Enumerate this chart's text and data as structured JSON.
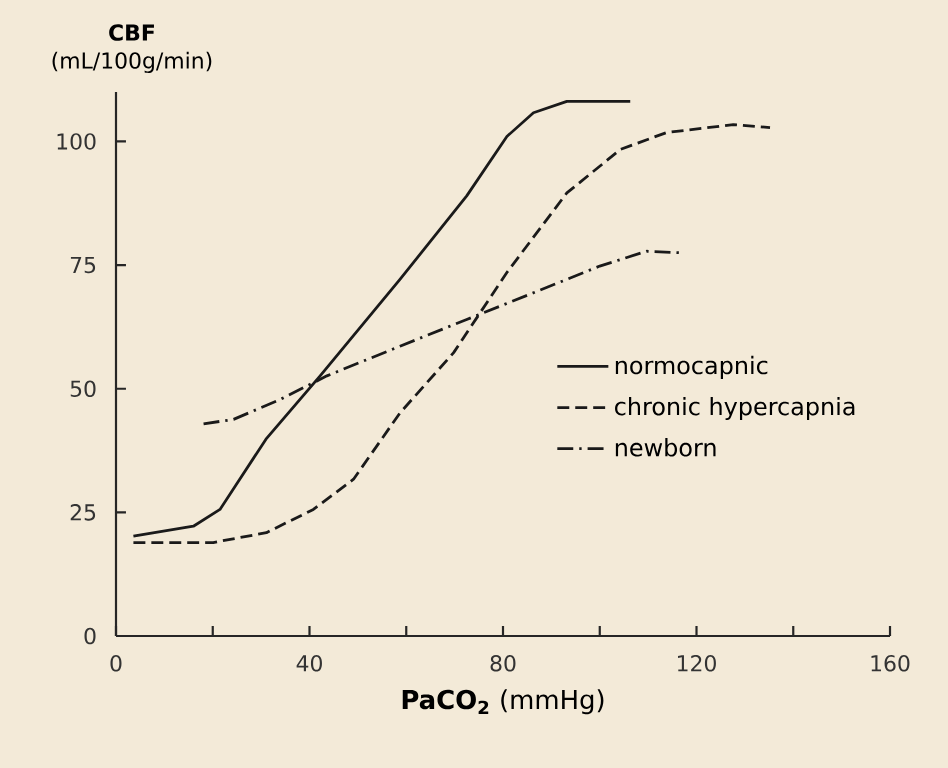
{
  "chart_data": {
    "type": "line",
    "xlabel": "**PaCO$_{2}$** (mmHg)",
    "ylabel": "**CBF** (mL/100g/min)",
    "xlim": [
      0,
      160
    ],
    "ylim": [
      0,
      110
    ],
    "xticks": [
      0,
      {
        "value": 20,
        "label": null
      },
      40,
      {
        "value": 60,
        "label": null
      },
      80,
      {
        "value": 100,
        "label": null
      },
      120,
      {
        "value": 140,
        "label": null
      },
      160
    ],
    "yticks": [
      0,
      25,
      50,
      75,
      100
    ],
    "grid": false,
    "legend": "right",
    "marker": "none",
    "series": [
      {
        "name": "normocapnic",
        "color": "#1a1a1a",
        "line_style": "solid",
        "x": [
          3.6,
          16,
          21.5,
          31,
          42.2,
          58.7,
          72.5,
          80.8,
          86.3,
          93.2,
          106.3
        ],
        "values": [
          20.2,
          22.2,
          25.6,
          39.8,
          52.6,
          72.1,
          89,
          101,
          105.8,
          108.1,
          108.1
        ]
      },
      {
        "name": "chronic hypercapnia",
        "color": "#1a1a1a",
        "line_style": "dashed",
        "x": [
          3.6,
          20.1,
          31.1,
          40.8,
          49.1,
          58.7,
          69.8,
          80.8,
          93.2,
          104.3,
          113.8,
          127.6,
          135.2
        ],
        "values": [
          18.9,
          18.9,
          20.9,
          25.6,
          31.7,
          45.1,
          57.3,
          73.5,
          89.6,
          98.4,
          101.8,
          103.4,
          102.8
        ]
      },
      {
        "name": "newborn",
        "color": "#1a1a1a",
        "line_style": "dashdot",
        "x": [
          18.1,
          24.3,
          33.9,
          43.6,
          58.7,
          72.5,
          86.3,
          100,
          109.7,
          116.6
        ],
        "values": [
          42.9,
          43.8,
          47.8,
          52.6,
          58.6,
          64,
          69.4,
          74.8,
          77.8,
          77.5
        ]
      }
    ]
  }
}
